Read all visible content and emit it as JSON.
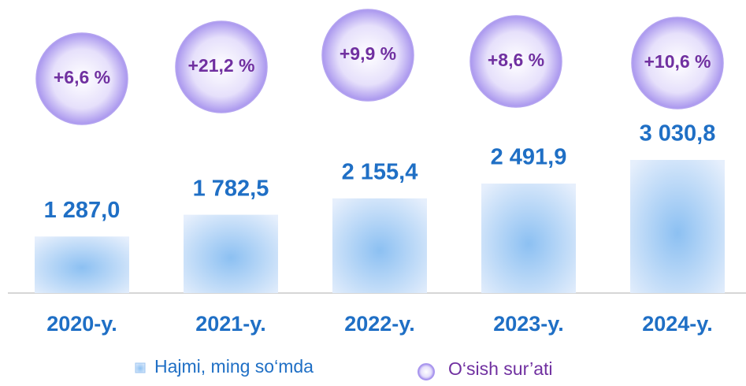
{
  "chart_data": {
    "type": "bar",
    "categories": [
      "2020-y.",
      "2021-y.",
      "2022-y.",
      "2023-y.",
      "2024-y."
    ],
    "series": [
      {
        "name": "Hajmi, ming so‘mda",
        "color": "#1f6fc5",
        "values": [
          1287.0,
          1782.5,
          2155.4,
          2491.9,
          3030.8
        ],
        "value_labels": [
          "1 287,0",
          "1 782,5",
          "2 155,4",
          "2 491,9",
          "3 030,8"
        ]
      },
      {
        "name": "O‘sish sur’ati",
        "color": "#7030a0",
        "values": [
          6.6,
          21.2,
          9.9,
          8.6,
          10.6
        ],
        "value_labels": [
          "+6,6 %",
          "+21,2 %",
          "+9,9 %",
          "+8,6 %",
          "+10,6 %"
        ]
      }
    ]
  }
}
